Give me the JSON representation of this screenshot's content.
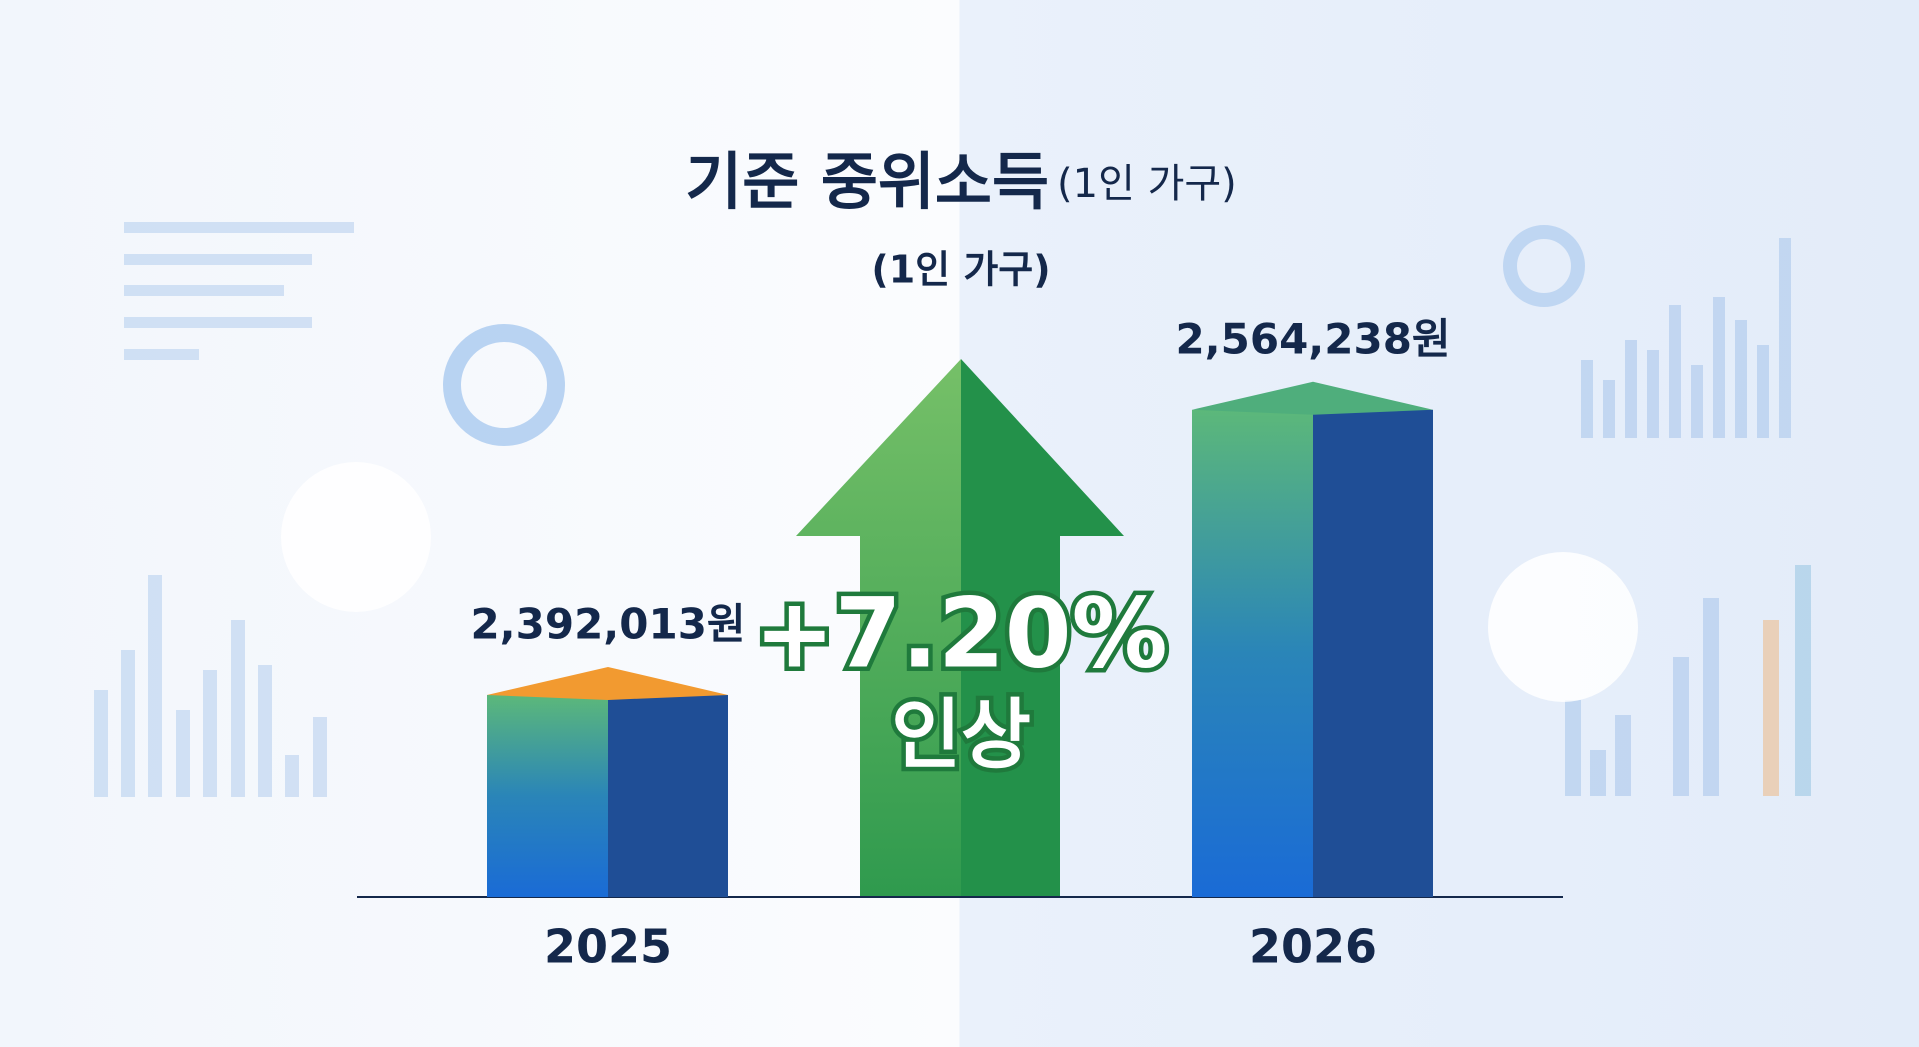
{
  "chart_data": {
    "type": "bar",
    "title": "기준 중위소득",
    "title_note": "(1인 가구)",
    "subtitle": "(1인 가구)",
    "categories": [
      "2025",
      "2026"
    ],
    "values": [
      2392013,
      2564238
    ],
    "value_labels": [
      "2,392,013원",
      "2,564,238원"
    ],
    "annotations": [
      "+7.20%",
      "인상"
    ],
    "color": "#1f4e96",
    "top_colors": [
      "#f29a30",
      "#4fae7c"
    ],
    "ylim": [
      2270000,
      2700000
    ]
  }
}
